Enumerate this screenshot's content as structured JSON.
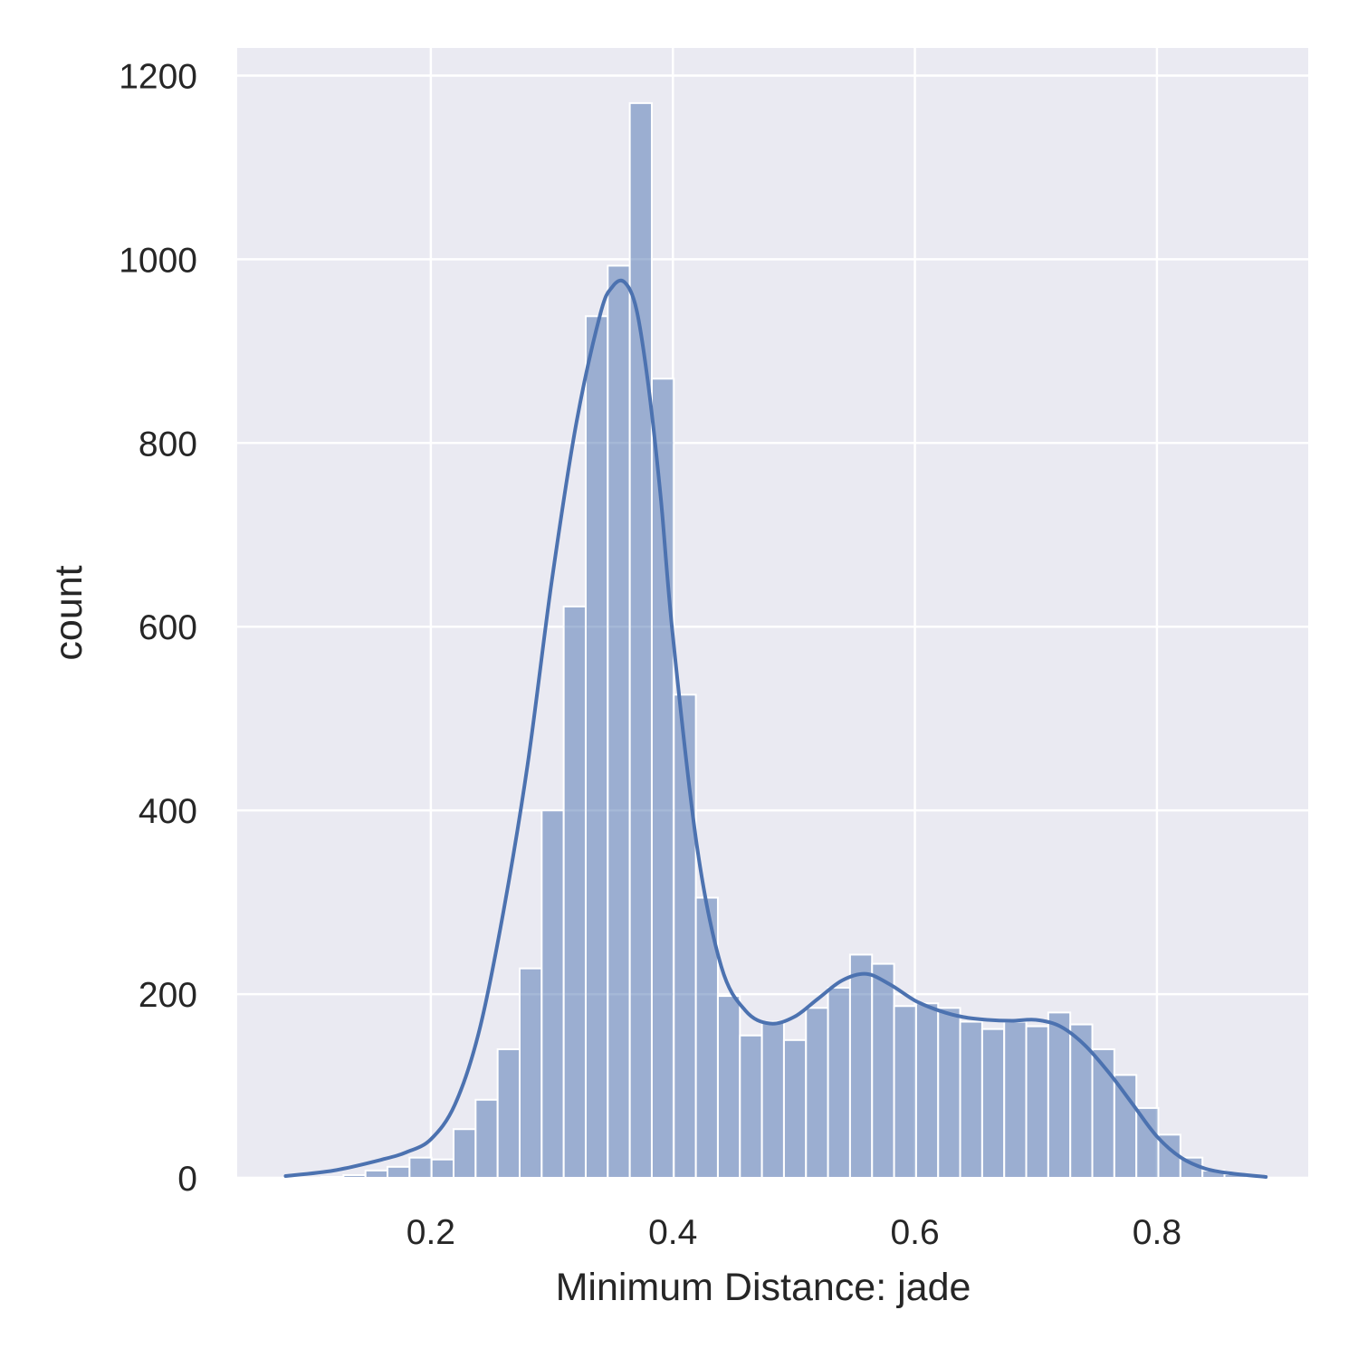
{
  "chart_data": {
    "type": "bar",
    "title": "",
    "xlabel": "Minimum Distance: jade",
    "ylabel": "count",
    "xlim": [
      0.04,
      0.925
    ],
    "ylim": [
      0,
      1230
    ],
    "x_ticks": [
      "0.2",
      "0.4",
      "0.6",
      "0.8"
    ],
    "x_tick_values": [
      0.2,
      0.4,
      0.6,
      0.8
    ],
    "y_ticks": [
      "0",
      "200",
      "400",
      "600",
      "800",
      "1000",
      "1200"
    ],
    "y_tick_values": [
      0,
      200,
      400,
      600,
      800,
      1000,
      1200
    ],
    "grid": true,
    "background_color": "#eaeaf2",
    "grid_color": "#ffffff",
    "bar_color": "#4c72b0",
    "bar_opacity": 0.5,
    "kde_color": "#4c72b0",
    "bins": {
      "start": 0.1096,
      "width": 0.0182,
      "counts": [
        1,
        3,
        8,
        12,
        22,
        20,
        53,
        85,
        140,
        228,
        400,
        622,
        938,
        993,
        1170,
        870,
        526,
        305,
        198,
        155,
        170,
        150,
        185,
        207,
        243,
        233,
        187,
        190,
        185,
        170,
        162,
        170,
        165,
        180,
        167,
        140,
        112,
        76,
        47,
        22,
        8,
        4
      ]
    },
    "kde": {
      "x": [
        0.08,
        0.12,
        0.16,
        0.18,
        0.2,
        0.22,
        0.24,
        0.26,
        0.28,
        0.3,
        0.32,
        0.34,
        0.35,
        0.36,
        0.37,
        0.38,
        0.39,
        0.4,
        0.42,
        0.44,
        0.46,
        0.48,
        0.5,
        0.52,
        0.54,
        0.56,
        0.58,
        0.6,
        0.62,
        0.64,
        0.66,
        0.68,
        0.7,
        0.72,
        0.74,
        0.76,
        0.78,
        0.8,
        0.82,
        0.84,
        0.86,
        0.89
      ],
      "y": [
        2,
        8,
        20,
        28,
        42,
        80,
        160,
        290,
        450,
        650,
        820,
        940,
        970,
        975,
        945,
        860,
        740,
        590,
        360,
        230,
        182,
        168,
        175,
        195,
        215,
        222,
        210,
        193,
        182,
        175,
        172,
        171,
        172,
        165,
        145,
        115,
        80,
        45,
        22,
        10,
        5,
        1
      ]
    }
  }
}
